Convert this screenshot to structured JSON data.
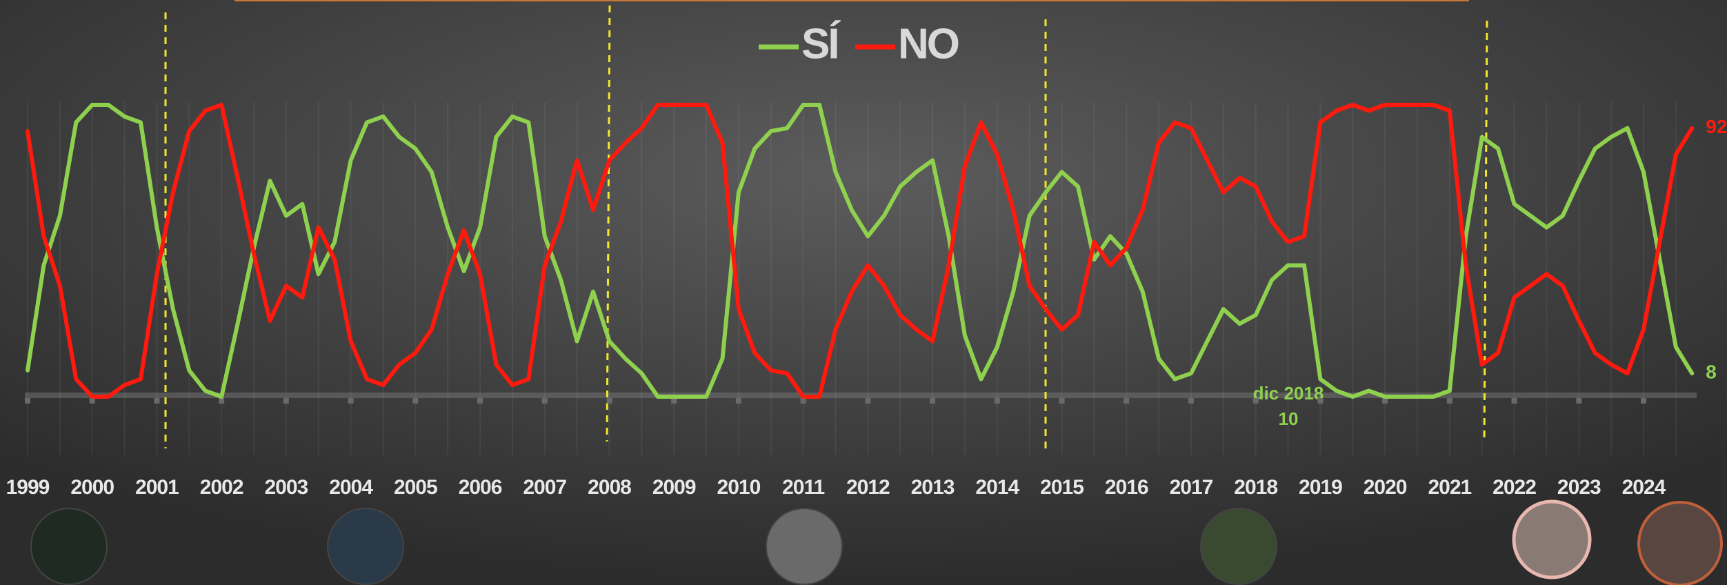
{
  "chart_data": {
    "type": "line",
    "categories": [
      "1999",
      null,
      null,
      null,
      "2000",
      null,
      null,
      null,
      "2001",
      null,
      null,
      null,
      "2002",
      null,
      null,
      null,
      "2003",
      null,
      null,
      null,
      "2004",
      null,
      null,
      null,
      "2005",
      null,
      null,
      null,
      "2006",
      null,
      null,
      null,
      "2007",
      null,
      null,
      null,
      "2008",
      null,
      null,
      null,
      "2009",
      null,
      null,
      null,
      "2010",
      null,
      null,
      null,
      "2011",
      null,
      null,
      null,
      "2012",
      null,
      null,
      null,
      "2013",
      null,
      null,
      null,
      "2014",
      null,
      null,
      null,
      "2015",
      null,
      null,
      null,
      "2016",
      null,
      null,
      null,
      "2017",
      null,
      null,
      null,
      "2018",
      null,
      null,
      null,
      "2019",
      null,
      null,
      null,
      "2020",
      null,
      null,
      null,
      "2021",
      null,
      null,
      null,
      "2022",
      null,
      null,
      null,
      "2023",
      null,
      null,
      null,
      "2024",
      null,
      null,
      null
    ],
    "series": [
      {
        "name": "SÍ",
        "color": "#8fd14f",
        "values": [
          9,
          45,
          62,
          94,
          100,
          100,
          96,
          94,
          58,
          30,
          9,
          2,
          0,
          25,
          51,
          74,
          62,
          66,
          42,
          53,
          81,
          94,
          96,
          89,
          85,
          77,
          58,
          43,
          58,
          89,
          96,
          94,
          55,
          40,
          19,
          36,
          19,
          13,
          8,
          0,
          0,
          0,
          0,
          13,
          70,
          85,
          91,
          92,
          100,
          100,
          77,
          64,
          55,
          62,
          72,
          77,
          81,
          55,
          21,
          6,
          17,
          36,
          62,
          70,
          77,
          72,
          47,
          55,
          49,
          36,
          13,
          6,
          8,
          19,
          30,
          25,
          28,
          40,
          45,
          45,
          6,
          2,
          0,
          2,
          0,
          0,
          0,
          0,
          2,
          55,
          89,
          85,
          66,
          62,
          58,
          62,
          74,
          85,
          89,
          92,
          77,
          47,
          17,
          8
        ]
      },
      {
        "name": "NO",
        "color": "#ff1a0d",
        "values": [
          91,
          55,
          38,
          6,
          0,
          0,
          4,
          6,
          42,
          70,
          91,
          98,
          100,
          75,
          49,
          26,
          38,
          34,
          58,
          47,
          19,
          6,
          4,
          11,
          15,
          23,
          42,
          57,
          42,
          11,
          4,
          6,
          45,
          60,
          81,
          64,
          81,
          87,
          92,
          100,
          100,
          100,
          100,
          87,
          30,
          15,
          9,
          8,
          0,
          0,
          23,
          36,
          45,
          38,
          28,
          23,
          19,
          45,
          79,
          94,
          83,
          64,
          38,
          30,
          23,
          28,
          53,
          45,
          51,
          64,
          87,
          94,
          92,
          81,
          70,
          75,
          72,
          60,
          53,
          55,
          94,
          98,
          100,
          98,
          100,
          100,
          100,
          100,
          98,
          45,
          11,
          15,
          34,
          38,
          42,
          38,
          26,
          15,
          11,
          8,
          23,
          53,
          83,
          92
        ]
      }
    ],
    "annotations": [
      "dic 2018",
      "10"
    ],
    "ylim": [
      0,
      100
    ]
  }
}
